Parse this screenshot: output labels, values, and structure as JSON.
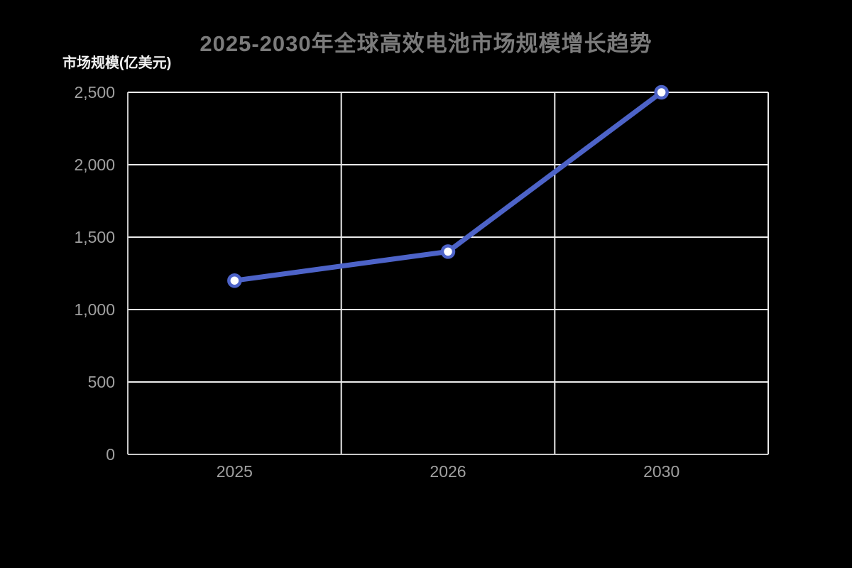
{
  "title": "2025-2030年全球高效电池市场规模增长趋势",
  "chart_data": {
    "type": "line",
    "title": "2025-2030年全球高效电池市场规模增长趋势",
    "ylabel": "市场规模(亿美元)",
    "xlabel": "",
    "categories": [
      "2025",
      "2026",
      "2030"
    ],
    "series": [
      {
        "name": "市场规模",
        "values": [
          1200,
          1400,
          2500
        ]
      }
    ],
    "ylim": [
      0,
      2500
    ],
    "yticks": [
      0,
      500,
      1000,
      1500,
      2000,
      2500
    ],
    "ytick_labels": [
      "0",
      "500",
      "1,000",
      "1,500",
      "2,000",
      "2,500"
    ],
    "grid": true,
    "legend_position": "none",
    "colors": {
      "background": "#000000",
      "line": "#4D63C8",
      "marker_fill": "#ffffff",
      "grid_line": "#ebebeb",
      "axis_line": "#c8c8c8",
      "tick_label": "#a0a0a0",
      "title": "#7b7b7b",
      "axis_name": "#f2f2f2"
    }
  }
}
